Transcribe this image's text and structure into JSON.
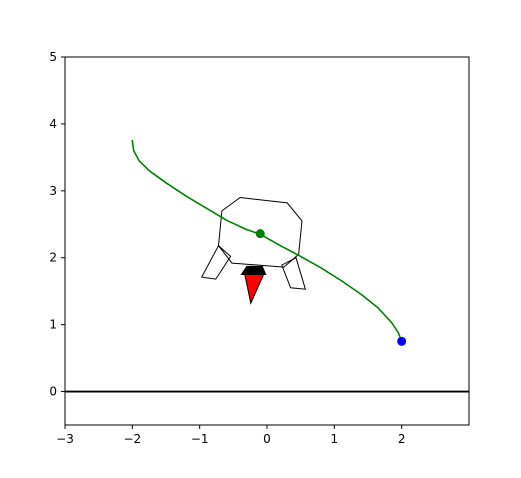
{
  "chart_data": {
    "type": "line",
    "title": "",
    "xlabel": "",
    "ylabel": "",
    "xlim": [
      -3,
      3
    ],
    "ylim": [
      -0.5,
      5
    ],
    "grid": false,
    "x_ticks": [
      {
        "value": -3,
        "label": "−3"
      },
      {
        "value": -2,
        "label": "−2"
      },
      {
        "value": -1,
        "label": "−1"
      },
      {
        "value": 0,
        "label": "0"
      },
      {
        "value": 1,
        "label": "1"
      },
      {
        "value": 2,
        "label": "2"
      }
    ],
    "y_ticks": [
      {
        "value": 0,
        "label": "0"
      },
      {
        "value": 1,
        "label": "1"
      },
      {
        "value": 2,
        "label": "2"
      },
      {
        "value": 3,
        "label": "3"
      },
      {
        "value": 4,
        "label": "4"
      },
      {
        "value": 5,
        "label": "5"
      }
    ],
    "ground_line": {
      "y": 0,
      "color": "#000000"
    },
    "trajectory": {
      "color": "#008000",
      "x": [
        -2.0,
        -1.98,
        -1.9,
        -1.75,
        -1.5,
        -1.2,
        -0.9,
        -0.6,
        -0.3,
        -0.1,
        0.2,
        0.5,
        0.8,
        1.1,
        1.4,
        1.65,
        1.85,
        1.95,
        2.0
      ],
      "y": [
        3.75,
        3.6,
        3.45,
        3.3,
        3.12,
        2.92,
        2.74,
        2.56,
        2.42,
        2.35,
        2.18,
        2.02,
        1.85,
        1.66,
        1.45,
        1.25,
        1.03,
        0.88,
        0.75
      ]
    },
    "points": [
      {
        "x": -0.1,
        "y": 2.36,
        "color": "#008000"
      },
      {
        "x": 2.0,
        "y": 0.75,
        "color": "#0000ff"
      }
    ],
    "body_outline": {
      "color": "#000000",
      "x": [
        -0.4,
        0.3,
        0.52,
        0.47,
        0.25,
        -0.52,
        -0.72,
        -0.67
      ],
      "y": [
        2.9,
        2.82,
        2.55,
        2.05,
        1.86,
        1.92,
        2.18,
        2.7
      ]
    },
    "legs": [
      {
        "color": "#000000",
        "x": [
          -0.72,
          -0.97,
          -0.76,
          -0.54
        ],
        "y": [
          2.18,
          1.71,
          1.68,
          2.02
        ]
      },
      {
        "color": "#000000",
        "x": [
          0.43,
          0.57,
          0.35,
          0.22
        ],
        "y": [
          2.0,
          1.53,
          1.55,
          1.89
        ]
      }
    ],
    "thruster": {
      "color": "#000000",
      "x": [
        -0.38,
        -0.02,
        -0.07,
        -0.3
      ],
      "y": [
        1.75,
        1.75,
        1.87,
        1.87
      ]
    },
    "flame": {
      "color": "#ff0000",
      "x": [
        -0.33,
        -0.05,
        -0.24
      ],
      "y": [
        1.75,
        1.75,
        1.32
      ]
    }
  }
}
